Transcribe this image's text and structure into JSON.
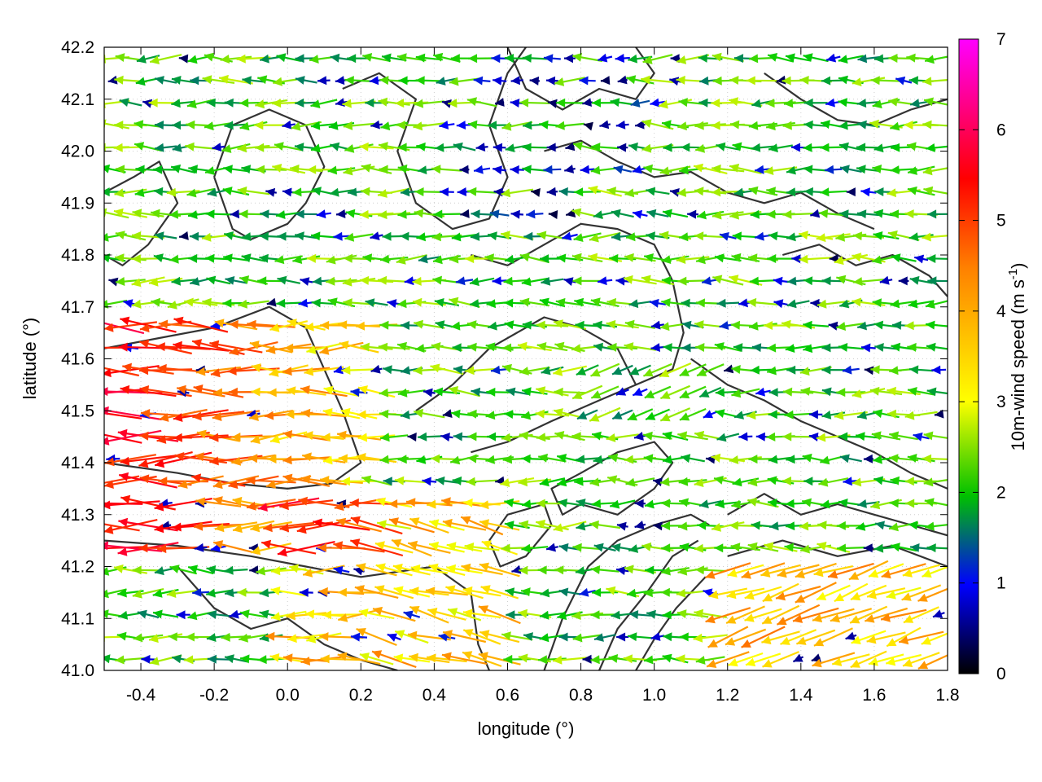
{
  "chart_data": {
    "type": "quiver",
    "xlabel": "longitude (°)",
    "ylabel": "latitude (°)",
    "xlim": [
      -0.5,
      1.8
    ],
    "ylim": [
      41.0,
      42.2
    ],
    "xticks": [
      -0.4,
      -0.2,
      0.0,
      0.2,
      0.4,
      0.6,
      0.8,
      1.0,
      1.2,
      1.4,
      1.6,
      1.8
    ],
    "xtick_labels": [
      "-0.4",
      "-0.2",
      "0.0",
      "0.2",
      "0.4",
      "0.6",
      "0.8",
      "1.0",
      "1.2",
      "1.4",
      "1.6",
      "1.8"
    ],
    "yticks": [
      41.0,
      41.1,
      41.2,
      41.3,
      41.4,
      41.5,
      41.6,
      41.7,
      41.8,
      41.9,
      42.0,
      42.1,
      42.2
    ],
    "ytick_labels": [
      "41.0",
      "41.1",
      "41.2",
      "41.3",
      "41.4",
      "41.5",
      "41.6",
      "41.7",
      "41.8",
      "41.9",
      "42.0",
      "42.1",
      "42.2"
    ],
    "grid": true,
    "colorbar": {
      "label_main": "10m-wind speed (m s",
      "label_sup": "-1",
      "label_close": ")",
      "range": [
        0,
        7
      ],
      "ticks": [
        "0",
        "1",
        "2",
        "3",
        "4",
        "5",
        "6",
        "7"
      ],
      "colormap": [
        "#000000",
        "#0000ff",
        "#00cc00",
        "#ffff00",
        "#ff8000",
        "#ff0000",
        "#ff00ff"
      ]
    },
    "contours": [
      [
        [
          -0.5,
          41.92
        ],
        [
          -0.42,
          41.95
        ],
        [
          -0.35,
          41.98
        ],
        [
          -0.3,
          41.9
        ],
        [
          -0.38,
          41.82
        ],
        [
          -0.45,
          41.78
        ],
        [
          -0.5,
          41.8
        ]
      ],
      [
        [
          -0.5,
          41.62
        ],
        [
          -0.35,
          41.64
        ],
        [
          -0.2,
          41.66
        ],
        [
          -0.05,
          41.7
        ],
        [
          0.05,
          41.66
        ],
        [
          0.1,
          41.58
        ],
        [
          0.15,
          41.5
        ],
        [
          0.2,
          41.4
        ],
        [
          0.12,
          41.36
        ],
        [
          0.0,
          41.35
        ],
        [
          -0.15,
          41.36
        ],
        [
          -0.3,
          41.38
        ],
        [
          -0.5,
          41.4
        ]
      ],
      [
        [
          -0.5,
          41.25
        ],
        [
          -0.3,
          41.24
        ],
        [
          -0.1,
          41.22
        ],
        [
          0.05,
          41.2
        ],
        [
          0.2,
          41.18
        ],
        [
          0.4,
          41.2
        ],
        [
          0.5,
          41.15
        ],
        [
          0.52,
          41.05
        ],
        [
          0.55,
          41.0
        ]
      ],
      [
        [
          -0.2,
          41.95
        ],
        [
          -0.15,
          41.85
        ],
        [
          -0.1,
          41.83
        ],
        [
          0.0,
          41.86
        ],
        [
          0.05,
          41.9
        ],
        [
          0.1,
          41.97
        ],
        [
          0.05,
          42.05
        ],
        [
          -0.05,
          42.08
        ],
        [
          -0.15,
          42.05
        ],
        [
          -0.2,
          41.95
        ]
      ],
      [
        [
          0.15,
          42.12
        ],
        [
          0.25,
          42.15
        ],
        [
          0.35,
          42.1
        ],
        [
          0.3,
          42.0
        ],
        [
          0.35,
          41.9
        ],
        [
          0.45,
          41.85
        ],
        [
          0.55,
          41.87
        ],
        [
          0.6,
          41.95
        ],
        [
          0.55,
          42.05
        ],
        [
          0.6,
          42.15
        ],
        [
          0.65,
          42.2
        ]
      ],
      [
        [
          0.5,
          41.8
        ],
        [
          0.6,
          41.78
        ],
        [
          0.7,
          41.82
        ],
        [
          0.8,
          41.86
        ],
        [
          0.9,
          41.85
        ],
        [
          1.0,
          41.82
        ],
        [
          1.05,
          41.75
        ],
        [
          1.08,
          41.65
        ],
        [
          1.05,
          41.58
        ],
        [
          0.95,
          41.55
        ],
        [
          0.85,
          41.52
        ],
        [
          0.72,
          41.48
        ],
        [
          0.6,
          41.44
        ],
        [
          0.5,
          41.42
        ]
      ],
      [
        [
          0.35,
          41.5
        ],
        [
          0.45,
          41.55
        ],
        [
          0.55,
          41.62
        ],
        [
          0.7,
          41.68
        ],
        [
          0.8,
          41.66
        ],
        [
          0.9,
          41.62
        ],
        [
          0.95,
          41.55
        ]
      ],
      [
        [
          0.6,
          42.2
        ],
        [
          0.65,
          42.12
        ],
        [
          0.75,
          42.08
        ],
        [
          0.85,
          42.12
        ],
        [
          0.95,
          42.1
        ],
        [
          1.0,
          42.15
        ],
        [
          0.95,
          42.2
        ]
      ],
      [
        [
          0.7,
          42.0
        ],
        [
          0.8,
          42.02
        ],
        [
          0.9,
          41.98
        ],
        [
          1.0,
          41.95
        ],
        [
          1.1,
          41.96
        ],
        [
          1.2,
          41.92
        ],
        [
          1.3,
          41.9
        ],
        [
          1.4,
          41.92
        ],
        [
          1.5,
          41.88
        ],
        [
          1.6,
          41.85
        ]
      ],
      [
        [
          1.3,
          42.15
        ],
        [
          1.4,
          42.1
        ],
        [
          1.5,
          42.06
        ],
        [
          1.6,
          42.05
        ],
        [
          1.7,
          42.08
        ],
        [
          1.8,
          42.1
        ]
      ],
      [
        [
          1.35,
          41.8
        ],
        [
          1.45,
          41.82
        ],
        [
          1.55,
          41.78
        ],
        [
          1.65,
          41.8
        ],
        [
          1.75,
          41.76
        ],
        [
          1.8,
          41.72
        ]
      ],
      [
        [
          1.1,
          41.6
        ],
        [
          1.2,
          41.55
        ],
        [
          1.3,
          41.52
        ],
        [
          1.4,
          41.48
        ],
        [
          1.5,
          41.45
        ],
        [
          1.6,
          41.42
        ],
        [
          1.7,
          41.38
        ],
        [
          1.8,
          41.35
        ]
      ],
      [
        [
          0.8,
          41.32
        ],
        [
          0.9,
          41.3
        ],
        [
          1.0,
          41.35
        ],
        [
          1.05,
          41.4
        ],
        [
          1.0,
          41.44
        ],
        [
          0.9,
          41.42
        ],
        [
          0.8,
          41.38
        ],
        [
          0.72,
          41.35
        ],
        [
          0.75,
          41.3
        ],
        [
          0.8,
          41.32
        ]
      ],
      [
        [
          0.7,
          41.0
        ],
        [
          0.75,
          41.1
        ],
        [
          0.82,
          41.2
        ],
        [
          0.9,
          41.25
        ],
        [
          1.0,
          41.28
        ],
        [
          1.1,
          41.3
        ],
        [
          1.15,
          41.28
        ]
      ],
      [
        [
          0.85,
          41.0
        ],
        [
          0.9,
          41.08
        ],
        [
          0.98,
          41.15
        ],
        [
          1.05,
          41.22
        ],
        [
          1.12,
          41.25
        ]
      ],
      [
        [
          0.95,
          41.0
        ],
        [
          1.0,
          41.06
        ],
        [
          1.06,
          41.12
        ],
        [
          1.14,
          41.18
        ]
      ],
      [
        [
          1.2,
          41.3
        ],
        [
          1.3,
          41.34
        ],
        [
          1.4,
          41.3
        ],
        [
          1.5,
          41.32
        ],
        [
          1.6,
          41.3
        ],
        [
          1.7,
          41.28
        ],
        [
          1.8,
          41.26
        ]
      ],
      [
        [
          1.2,
          41.22
        ],
        [
          1.35,
          41.25
        ],
        [
          1.5,
          41.22
        ],
        [
          1.65,
          41.24
        ],
        [
          1.8,
          41.2
        ]
      ],
      [
        [
          -0.3,
          41.2
        ],
        [
          -0.2,
          41.12
        ],
        [
          -0.1,
          41.08
        ],
        [
          0.0,
          41.1
        ],
        [
          0.1,
          41.05
        ],
        [
          0.2,
          41.02
        ],
        [
          0.3,
          41.0
        ]
      ],
      [
        [
          0.55,
          41.25
        ],
        [
          0.6,
          41.3
        ],
        [
          0.7,
          41.32
        ],
        [
          0.72,
          41.28
        ],
        [
          0.65,
          41.22
        ],
        [
          0.58,
          41.2
        ],
        [
          0.55,
          41.25
        ]
      ]
    ]
  }
}
